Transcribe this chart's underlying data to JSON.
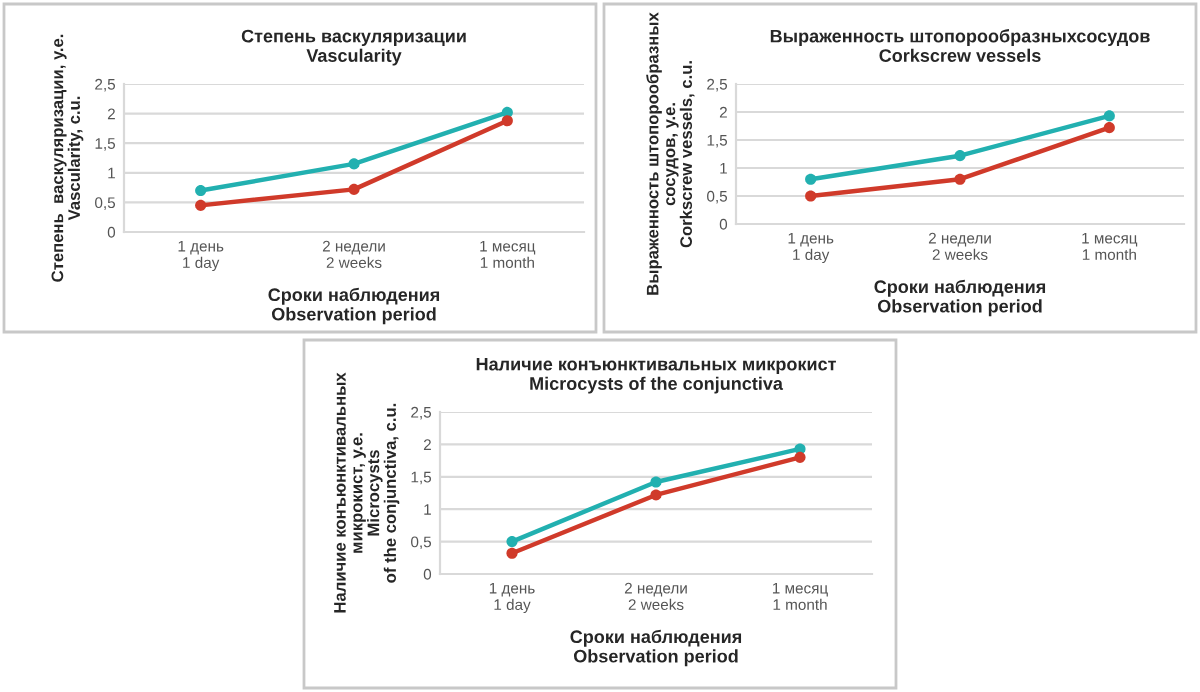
{
  "chart_data": [
    {
      "type": "line",
      "title": "Степень васкуляризации\nVascularity",
      "xlabel": "Сроки наблюдения\nObservation period",
      "ylabel": "Степень  васкуляризации, у.е.\nVascularity, c.u.",
      "categories": [
        "1 день\n1 day",
        "2 недели\n2 weeks",
        "1 месяц\n1 month"
      ],
      "series": [
        {
          "color": "#22b0b0",
          "values": [
            0.7,
            1.15,
            2.02
          ]
        },
        {
          "color": "#d03a2a",
          "values": [
            0.45,
            0.72,
            1.88
          ]
        }
      ],
      "ylim": [
        0,
        2.5
      ],
      "yticks": [
        0,
        {
          "value": 0.5,
          "label": "0,5"
        },
        1,
        {
          "value": 1.5,
          "label": "1,5"
        },
        2,
        {
          "value": 2.5,
          "label": "2,5"
        }
      ],
      "grid": "y",
      "marker": "circle",
      "line_style": "solid"
    },
    {
      "type": "line",
      "title": "Выраженность штопорообразныхсосудов\nCorkscrew vessels",
      "xlabel": "Сроки наблюдения\nObservation period",
      "ylabel": "Выраженность штопорообразных\nсосудов, у.е.\nCorkscrew vessels, c.u.",
      "categories": [
        "1 день\n1 day",
        "2 недели\n2 weeks",
        "1 месяц\n1 month"
      ],
      "series": [
        {
          "color": "#22b0b0",
          "values": [
            0.8,
            1.22,
            1.93
          ]
        },
        {
          "color": "#d03a2a",
          "values": [
            0.5,
            0.8,
            1.72
          ]
        }
      ],
      "ylim": [
        0,
        2.5
      ],
      "yticks": [
        0,
        {
          "value": 0.5,
          "label": "0,5"
        },
        1,
        {
          "value": 1.5,
          "label": "1,5"
        },
        2,
        {
          "value": 2.5,
          "label": "2,5"
        }
      ],
      "grid": "y",
      "marker": "circle",
      "line_style": "solid"
    },
    {
      "type": "line",
      "title": "Наличие конъюнктивальных микрокист\nMicrocysts of the conjunctiva",
      "xlabel": "Сроки наблюдения\nObservation period",
      "ylabel": "Наличие конъюнктивальных\nмикрокист, у.е.\nMicrocysts\nof the conjunctiva, c.u.",
      "categories": [
        "1 день\n1 day",
        "2 недели\n2 weeks",
        "1 месяц\n1 month"
      ],
      "series": [
        {
          "color": "#22b0b0",
          "values": [
            0.5,
            1.42,
            1.93
          ]
        },
        {
          "color": "#d03a2a",
          "values": [
            0.32,
            1.22,
            1.8
          ]
        }
      ],
      "ylim": [
        0,
        2.5
      ],
      "yticks": [
        0,
        {
          "value": 0.5,
          "label": "0,5"
        },
        1,
        {
          "value": 1.5,
          "label": "1,5"
        },
        2,
        {
          "value": 2.5,
          "label": "2,5"
        }
      ],
      "grid": "y",
      "marker": "circle",
      "line_style": "solid"
    }
  ]
}
